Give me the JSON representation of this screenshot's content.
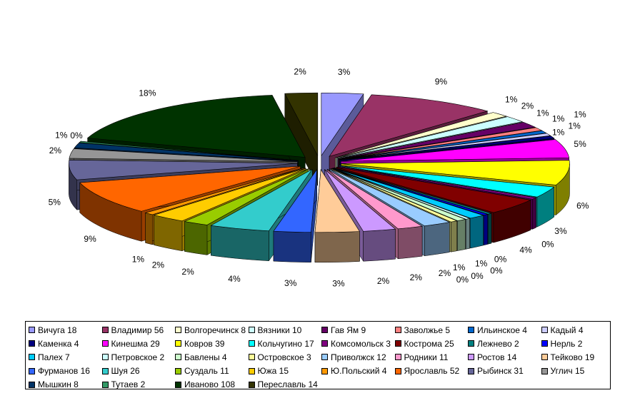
{
  "chart_data": {
    "type": "pie",
    "style": "3d-exploded",
    "title": "",
    "legend_position": "bottom",
    "categories": [
      "Вичуга",
      "Владимир",
      "Волгоречинск",
      "Вязники",
      "Гав Ям",
      "Заволжье",
      "Ильинское",
      "Кадый",
      "Каменка",
      "Кинешма",
      "Ковров",
      "Кольчугино",
      "Комсомольск",
      "Кострома",
      "Лежнево",
      "Нерль",
      "Палех",
      "Петровское",
      "Бавлены",
      "Островское",
      "Приволжск",
      "Родники",
      "Ростов",
      "Тейково",
      "Фурманов",
      "Шуя",
      "Суздаль",
      "Южа",
      "Ю.Польский",
      "Ярославль",
      "Рыбинск",
      "Углич",
      "Мышкин",
      "Тутаев",
      "Иваново",
      "Переславль"
    ],
    "values": [
      18,
      56,
      8,
      10,
      9,
      5,
      4,
      4,
      4,
      29,
      39,
      17,
      3,
      25,
      2,
      2,
      7,
      2,
      4,
      3,
      12,
      11,
      14,
      19,
      16,
      26,
      11,
      15,
      4,
      52,
      31,
      15,
      8,
      2,
      108,
      14
    ],
    "legend_labels": [
      "Вичуга 18",
      "Владимир 56",
      "Волгоречинск 8",
      "Вязники 10",
      "Гав Ям 9",
      "Заволжье 5",
      "Ильинское 4",
      "Кадый 4",
      "Каменка 4",
      "Кинешма 29",
      "Ковров 39",
      "Кольчугино 17",
      "Комсомольск 3",
      "Кострома 25",
      "Лежнево 2",
      "Нерль 2",
      "Палех 7",
      "Петровское 2",
      "Бавлены 4",
      "Островское 3",
      "Приволжск 12",
      "Родники 11",
      "Ростов 14",
      "Тейково 19",
      "Фурманов 16",
      "Шуя 26",
      "Суздаль 11",
      "Южа 15",
      "Ю.Польский 4",
      "Ярославль 52",
      "Рыбинск 31",
      "Углич 15",
      "Мышкин 8",
      "Тутаев 2",
      "Иваново 108",
      "Переславль 14"
    ],
    "percent_labels": [
      "3%",
      "9%",
      "1%",
      "2%",
      "1%",
      "1%",
      "1%",
      "1%",
      "1%",
      "5%",
      "6%",
      "3%",
      "0%",
      "4%",
      "0%",
      "0%",
      "1%",
      "0%",
      "1%",
      "0%",
      "2%",
      "2%",
      "2%",
      "3%",
      "3%",
      "4%",
      "2%",
      "2%",
      "1%",
      "9%",
      "5%",
      "2%",
      "1%",
      "0%",
      "18%",
      "2%"
    ],
    "colors": [
      "#9999ff",
      "#993366",
      "#ffffcc",
      "#ccffff",
      "#660066",
      "#ff8080",
      "#0066cc",
      "#ccccff",
      "#000080",
      "#ff00ff",
      "#ffff00",
      "#00ffff",
      "#800080",
      "#800000",
      "#008080",
      "#0000ff",
      "#00ccff",
      "#ccffff",
      "#ccffcc",
      "#ffff99",
      "#99ccff",
      "#ff99cc",
      "#cc99ff",
      "#ffcc99",
      "#3366ff",
      "#33cccc",
      "#99cc00",
      "#ffcc00",
      "#ff9900",
      "#ff6600",
      "#666699",
      "#969696",
      "#003366",
      "#339966",
      "#003300",
      "#333300"
    ]
  }
}
